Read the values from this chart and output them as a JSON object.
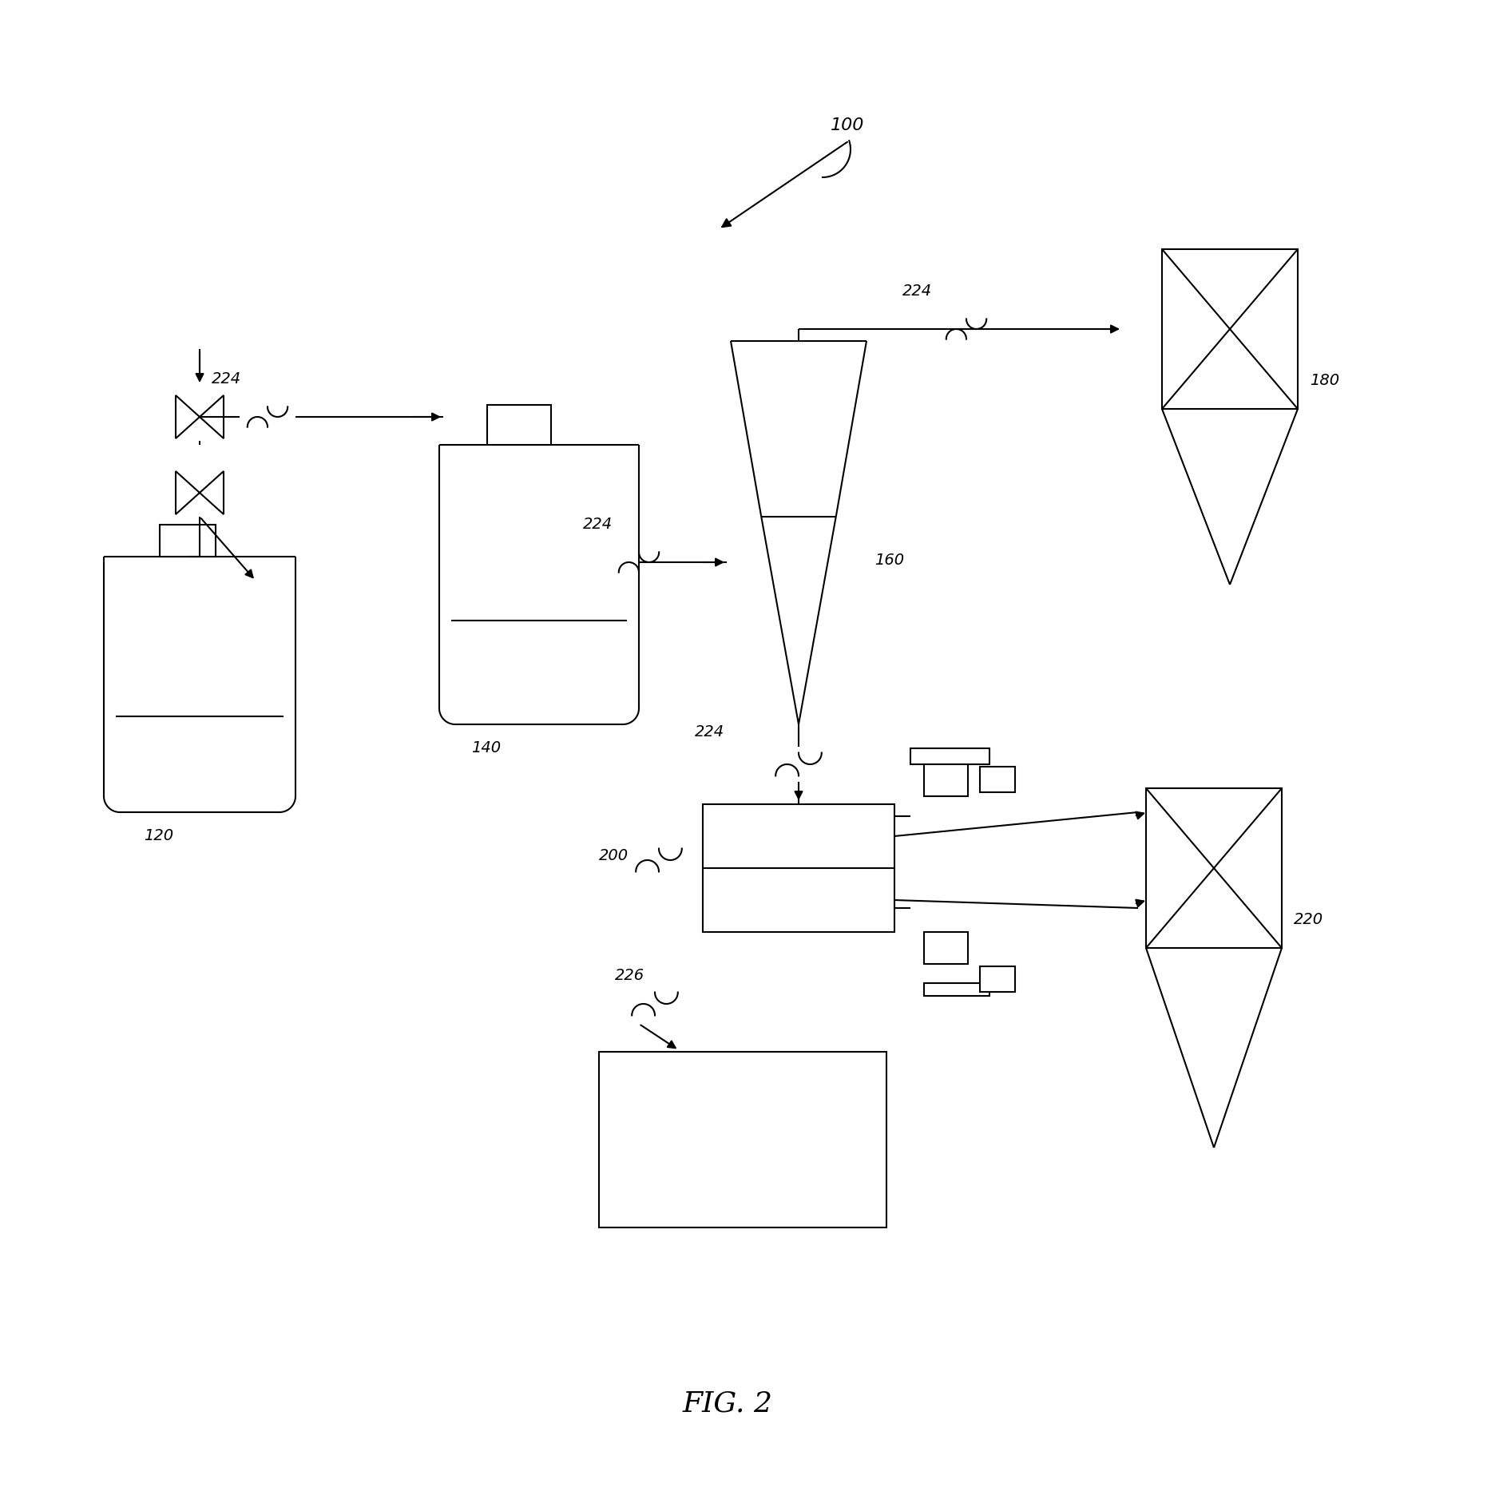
{
  "fig_label": "FIG. 2",
  "ref_100": "100",
  "ref_120": "120",
  "ref_140": "140",
  "ref_160": "160",
  "ref_180": "180",
  "ref_200": "200",
  "ref_220": "220",
  "ref_224": "224",
  "ref_226": "226",
  "bg_color": "#ffffff",
  "line_color": "#000000",
  "lw": 1.5,
  "fs": 14,
  "fs_fig": 26
}
